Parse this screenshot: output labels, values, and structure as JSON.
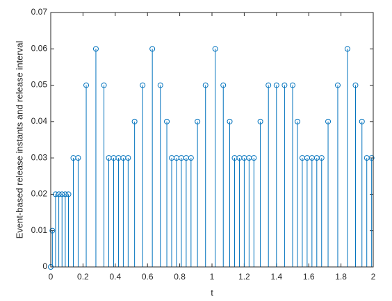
{
  "chart_data": {
    "type": "stem",
    "xlabel": "t",
    "ylabel": "Event-based release instants and release interval",
    "color": "#0072bd",
    "grid": false,
    "xlim": [
      0,
      2
    ],
    "ylim": [
      0,
      0.07
    ],
    "xticks": [
      0,
      0.2,
      0.4,
      0.6,
      0.8,
      1,
      1.2,
      1.4,
      1.6,
      1.8,
      2
    ],
    "yticks": [
      0,
      0.01,
      0.02,
      0.03,
      0.04,
      0.05,
      0.06,
      0.07
    ],
    "x": [
      0,
      0.01,
      0.03,
      0.05,
      0.07,
      0.09,
      0.11,
      0.14,
      0.17,
      0.22,
      0.28,
      0.33,
      0.36,
      0.39,
      0.42,
      0.45,
      0.48,
      0.52,
      0.57,
      0.63,
      0.68,
      0.72,
      0.75,
      0.78,
      0.81,
      0.84,
      0.87,
      0.91,
      0.96,
      1.02,
      1.07,
      1.11,
      1.14,
      1.17,
      1.2,
      1.23,
      1.26,
      1.3,
      1.35,
      1.4,
      1.45,
      1.5,
      1.53,
      1.56,
      1.59,
      1.62,
      1.65,
      1.68,
      1.72,
      1.78,
      1.84,
      1.89,
      1.93,
      1.96,
      1.99
    ],
    "values": [
      0,
      0.01,
      0.02,
      0.02,
      0.02,
      0.02,
      0.02,
      0.03,
      0.03,
      0.05,
      0.06,
      0.05,
      0.03,
      0.03,
      0.03,
      0.03,
      0.03,
      0.04,
      0.05,
      0.06,
      0.05,
      0.04,
      0.03,
      0.03,
      0.03,
      0.03,
      0.03,
      0.04,
      0.05,
      0.06,
      0.05,
      0.04,
      0.03,
      0.03,
      0.03,
      0.03,
      0.03,
      0.04,
      0.05,
      0.05,
      0.05,
      0.05,
      0.04,
      0.03,
      0.03,
      0.03,
      0.03,
      0.03,
      0.04,
      0.05,
      0.06,
      0.05,
      0.04,
      0.03,
      0.03
    ]
  }
}
